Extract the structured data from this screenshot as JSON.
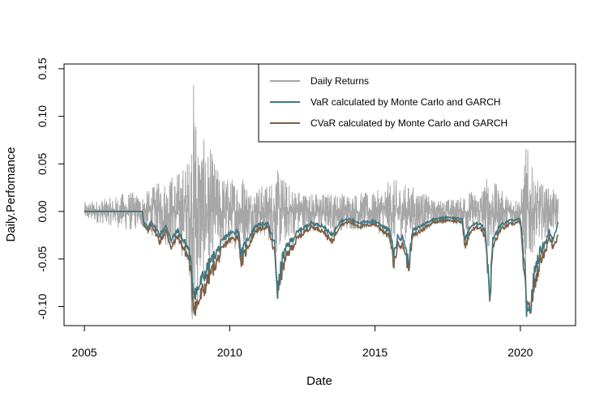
{
  "chart_data": {
    "type": "line",
    "title": "",
    "xlabel": "Date",
    "ylabel": "Daily.Perfomance",
    "xlim": [
      2004.3,
      2021.9
    ],
    "ylim": [
      -0.12,
      0.155
    ],
    "x_ticks": [
      2005,
      2010,
      2015,
      2020
    ],
    "x_tick_labels": [
      "2005",
      "2010",
      "2015",
      "2020"
    ],
    "y_ticks": [
      -0.1,
      -0.05,
      0.0,
      0.05,
      0.1,
      0.15
    ],
    "y_tick_labels": [
      "-0.10",
      "-0.05",
      "0.00",
      "0.05",
      "0.10",
      "0.15"
    ],
    "grid": false,
    "legend_position": "top-right",
    "x_start": 2005.0,
    "x_end": 2021.3,
    "series": [
      {
        "name": "Daily Returns",
        "color": "#a6a6a6",
        "envelope": [
          [
            2005.0,
            0.01
          ],
          [
            2006.0,
            0.015
          ],
          [
            2006.5,
            0.022
          ],
          [
            2007.0,
            0.018
          ],
          [
            2007.5,
            0.03
          ],
          [
            2008.0,
            0.04
          ],
          [
            2008.3,
            0.045
          ],
          [
            2008.6,
            0.06
          ],
          [
            2008.75,
            0.145
          ],
          [
            2008.85,
            0.12
          ],
          [
            2009.0,
            0.08
          ],
          [
            2009.3,
            0.07
          ],
          [
            2009.6,
            0.045
          ],
          [
            2010.0,
            0.035
          ],
          [
            2010.4,
            0.045
          ],
          [
            2010.7,
            0.025
          ],
          [
            2011.3,
            0.03
          ],
          [
            2011.6,
            0.045
          ],
          [
            2011.8,
            0.04
          ],
          [
            2012.0,
            0.03
          ],
          [
            2012.5,
            0.022
          ],
          [
            2013.0,
            0.02
          ],
          [
            2014.0,
            0.02
          ],
          [
            2015.0,
            0.02
          ],
          [
            2015.6,
            0.035
          ],
          [
            2016.0,
            0.03
          ],
          [
            2016.5,
            0.025
          ],
          [
            2017.0,
            0.012
          ],
          [
            2018.0,
            0.015
          ],
          [
            2018.1,
            0.025
          ],
          [
            2018.5,
            0.02
          ],
          [
            2018.9,
            0.04
          ],
          [
            2019.0,
            0.035
          ],
          [
            2019.5,
            0.018
          ],
          [
            2020.0,
            0.015
          ],
          [
            2020.1,
            0.04
          ],
          [
            2020.2,
            0.075
          ],
          [
            2020.3,
            0.06
          ],
          [
            2020.5,
            0.035
          ],
          [
            2021.0,
            0.025
          ],
          [
            2021.3,
            0.02
          ]
        ]
      },
      {
        "name": "VaR calculated by Monte Carlo and GARCH",
        "color": "#41767f",
        "points": [
          [
            2005.0,
            0.0
          ],
          [
            2007.0,
            0.0
          ],
          [
            2007.05,
            -0.012
          ],
          [
            2007.2,
            -0.018
          ],
          [
            2007.3,
            -0.01
          ],
          [
            2007.6,
            -0.025
          ],
          [
            2007.8,
            -0.015
          ],
          [
            2008.0,
            -0.03
          ],
          [
            2008.2,
            -0.02
          ],
          [
            2008.4,
            -0.03
          ],
          [
            2008.6,
            -0.04
          ],
          [
            2008.75,
            -0.08
          ],
          [
            2008.85,
            -0.085
          ],
          [
            2009.0,
            -0.075
          ],
          [
            2009.3,
            -0.055
          ],
          [
            2009.6,
            -0.04
          ],
          [
            2009.9,
            -0.025
          ],
          [
            2010.3,
            -0.02
          ],
          [
            2010.4,
            -0.045
          ],
          [
            2010.6,
            -0.03
          ],
          [
            2010.9,
            -0.015
          ],
          [
            2011.3,
            -0.012
          ],
          [
            2011.55,
            -0.035
          ],
          [
            2011.65,
            -0.085
          ],
          [
            2011.8,
            -0.05
          ],
          [
            2012.0,
            -0.035
          ],
          [
            2012.4,
            -0.02
          ],
          [
            2012.8,
            -0.012
          ],
          [
            2013.2,
            -0.015
          ],
          [
            2013.5,
            -0.025
          ],
          [
            2013.8,
            -0.01
          ],
          [
            2014.1,
            -0.008
          ],
          [
            2014.5,
            -0.012
          ],
          [
            2015.0,
            -0.01
          ],
          [
            2015.5,
            -0.02
          ],
          [
            2015.65,
            -0.045
          ],
          [
            2015.8,
            -0.025
          ],
          [
            2016.0,
            -0.03
          ],
          [
            2016.15,
            -0.055
          ],
          [
            2016.3,
            -0.02
          ],
          [
            2016.6,
            -0.015
          ],
          [
            2017.0,
            -0.008
          ],
          [
            2017.5,
            -0.006
          ],
          [
            2018.0,
            -0.008
          ],
          [
            2018.1,
            -0.03
          ],
          [
            2018.3,
            -0.015
          ],
          [
            2018.6,
            -0.012
          ],
          [
            2018.8,
            -0.02
          ],
          [
            2018.95,
            -0.09
          ],
          [
            2019.05,
            -0.03
          ],
          [
            2019.3,
            -0.015
          ],
          [
            2019.6,
            -0.01
          ],
          [
            2020.0,
            -0.008
          ],
          [
            2020.15,
            -0.06
          ],
          [
            2020.25,
            -0.12
          ],
          [
            2020.35,
            -0.1
          ],
          [
            2020.5,
            -0.06
          ],
          [
            2020.7,
            -0.04
          ],
          [
            2020.9,
            -0.03
          ],
          [
            2021.0,
            -0.02
          ],
          [
            2021.1,
            -0.03
          ],
          [
            2021.3,
            -0.012
          ]
        ]
      },
      {
        "name": "CVaR calculated by Monte Carlo and GARCH",
        "color": "#7b5f45",
        "points": [
          [
            2005.0,
            0.0
          ],
          [
            2007.0,
            0.0
          ],
          [
            2007.05,
            -0.015
          ],
          [
            2007.2,
            -0.022
          ],
          [
            2007.3,
            -0.013
          ],
          [
            2007.6,
            -0.032
          ],
          [
            2007.8,
            -0.02
          ],
          [
            2008.0,
            -0.038
          ],
          [
            2008.2,
            -0.026
          ],
          [
            2008.4,
            -0.038
          ],
          [
            2008.6,
            -0.05
          ],
          [
            2008.75,
            -0.095
          ],
          [
            2008.85,
            -0.1
          ],
          [
            2009.0,
            -0.09
          ],
          [
            2009.3,
            -0.068
          ],
          [
            2009.6,
            -0.05
          ],
          [
            2009.9,
            -0.032
          ],
          [
            2010.3,
            -0.026
          ],
          [
            2010.4,
            -0.055
          ],
          [
            2010.6,
            -0.038
          ],
          [
            2010.9,
            -0.02
          ],
          [
            2011.3,
            -0.016
          ],
          [
            2011.55,
            -0.044
          ],
          [
            2011.65,
            -0.085
          ],
          [
            2011.8,
            -0.062
          ],
          [
            2012.0,
            -0.044
          ],
          [
            2012.4,
            -0.026
          ],
          [
            2012.8,
            -0.016
          ],
          [
            2013.2,
            -0.02
          ],
          [
            2013.5,
            -0.032
          ],
          [
            2013.8,
            -0.014
          ],
          [
            2014.1,
            -0.011
          ],
          [
            2014.5,
            -0.016
          ],
          [
            2015.0,
            -0.013
          ],
          [
            2015.5,
            -0.026
          ],
          [
            2015.65,
            -0.056
          ],
          [
            2015.8,
            -0.032
          ],
          [
            2016.0,
            -0.038
          ],
          [
            2016.15,
            -0.06
          ],
          [
            2016.3,
            -0.026
          ],
          [
            2016.6,
            -0.02
          ],
          [
            2017.0,
            -0.011
          ],
          [
            2017.5,
            -0.009
          ],
          [
            2018.0,
            -0.011
          ],
          [
            2018.1,
            -0.038
          ],
          [
            2018.3,
            -0.02
          ],
          [
            2018.6,
            -0.016
          ],
          [
            2018.8,
            -0.026
          ],
          [
            2018.95,
            -0.092
          ],
          [
            2019.05,
            -0.038
          ],
          [
            2019.3,
            -0.02
          ],
          [
            2019.6,
            -0.014
          ],
          [
            2020.0,
            -0.011
          ],
          [
            2020.15,
            -0.075
          ],
          [
            2020.25,
            -0.11
          ],
          [
            2020.35,
            -0.1
          ],
          [
            2020.5,
            -0.075
          ],
          [
            2020.7,
            -0.05
          ],
          [
            2020.9,
            -0.038
          ],
          [
            2021.0,
            -0.026
          ],
          [
            2021.1,
            -0.036
          ],
          [
            2021.3,
            -0.026
          ]
        ]
      }
    ]
  }
}
